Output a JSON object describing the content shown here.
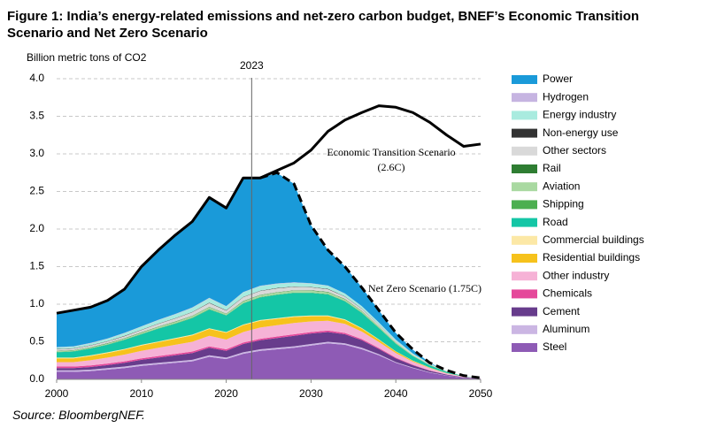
{
  "chart_data": {
    "type": "stacked-area",
    "title": "Figure 1: India’s energy-related emissions and net-zero carbon budget, BNEF’s Economic Transition Scenario and Net Zero Scenario",
    "y_label": "Billion metric tons of CO2",
    "source": "Source: BloombergNEF.",
    "x": [
      2000,
      2002,
      2004,
      2006,
      2008,
      2010,
      2012,
      2014,
      2016,
      2018,
      2020,
      2022,
      2024,
      2026,
      2028,
      2030,
      2032,
      2034,
      2036,
      2038,
      2040,
      2042,
      2044,
      2046,
      2048,
      2050
    ],
    "xlim": [
      2000,
      2050
    ],
    "xticks": [
      2000,
      2010,
      2020,
      2030,
      2040,
      2050
    ],
    "ylim": [
      0,
      4
    ],
    "yticks": [
      {
        "value": 0,
        "label": "0.0"
      },
      0.5,
      {
        "value": 1,
        "label": "1.0"
      },
      1.5,
      {
        "value": 2,
        "label": "2.0"
      },
      2.5,
      {
        "value": 3,
        "label": "3.0"
      },
      3.5,
      {
        "value": 4,
        "label": "4.0"
      }
    ],
    "grid": true,
    "marker": {
      "x": 2023,
      "label": "2023"
    },
    "series": [
      {
        "name": "Steel",
        "color": "#8e5bb5",
        "values": [
          0.1,
          0.1,
          0.11,
          0.13,
          0.15,
          0.18,
          0.2,
          0.22,
          0.24,
          0.3,
          0.27,
          0.34,
          0.38,
          0.4,
          0.42,
          0.45,
          0.48,
          0.46,
          0.4,
          0.32,
          0.22,
          0.15,
          0.09,
          0.05,
          0.02,
          0.01
        ]
      },
      {
        "name": "Aluminum",
        "color": "#cbb6e3",
        "values": [
          0.02,
          0.02,
          0.02,
          0.02,
          0.02,
          0.02,
          0.02,
          0.02,
          0.02,
          0.02,
          0.02,
          0.02,
          0.02,
          0.02,
          0.02,
          0.02,
          0.02,
          0.02,
          0.02,
          0.015,
          0.01,
          0.008,
          0.005,
          0.003,
          0.002,
          0.001
        ]
      },
      {
        "name": "Cement",
        "color": "#673c8c",
        "values": [
          0.03,
          0.03,
          0.035,
          0.04,
          0.05,
          0.06,
          0.07,
          0.08,
          0.09,
          0.1,
          0.09,
          0.11,
          0.12,
          0.13,
          0.14,
          0.14,
          0.13,
          0.12,
          0.1,
          0.07,
          0.05,
          0.03,
          0.02,
          0.01,
          0.005,
          0
        ]
      },
      {
        "name": "Chemicals",
        "color": "#e5489a",
        "values": [
          0.02,
          0.02,
          0.02,
          0.02,
          0.02,
          0.02,
          0.02,
          0.02,
          0.02,
          0.02,
          0.02,
          0.02,
          0.02,
          0.02,
          0.02,
          0.02,
          0.02,
          0.018,
          0.015,
          0.012,
          0.01,
          0.007,
          0.004,
          0.002,
          0.001,
          0
        ]
      },
      {
        "name": "Other industry",
        "color": "#f6b2d6",
        "values": [
          0.06,
          0.06,
          0.07,
          0.08,
          0.09,
          0.1,
          0.11,
          0.12,
          0.13,
          0.14,
          0.13,
          0.14,
          0.15,
          0.15,
          0.15,
          0.14,
          0.13,
          0.12,
          0.1,
          0.08,
          0.06,
          0.04,
          0.03,
          0.015,
          0.007,
          0.003
        ]
      },
      {
        "name": "Residential buildings",
        "color": "#f6c21c",
        "values": [
          0.05,
          0.05,
          0.055,
          0.06,
          0.065,
          0.07,
          0.075,
          0.08,
          0.085,
          0.09,
          0.09,
          0.09,
          0.09,
          0.085,
          0.08,
          0.07,
          0.06,
          0.05,
          0.04,
          0.03,
          0.02,
          0.012,
          0.006,
          0.003,
          0.001,
          0
        ]
      },
      {
        "name": "Commercial buildings",
        "color": "#fce8a6",
        "values": [
          0.01,
          0.01,
          0.01,
          0.01,
          0.01,
          0.01,
          0.01,
          0.01,
          0.01,
          0.01,
          0.01,
          0.01,
          0.01,
          0.01,
          0.01,
          0.01,
          0.01,
          0.01,
          0.008,
          0.006,
          0.004,
          0.003,
          0.002,
          0.001,
          0.001,
          0
        ]
      },
      {
        "name": "Road",
        "color": "#14c6a6",
        "values": [
          0.07,
          0.08,
          0.09,
          0.1,
          0.12,
          0.14,
          0.17,
          0.19,
          0.22,
          0.25,
          0.22,
          0.28,
          0.3,
          0.31,
          0.31,
          0.3,
          0.28,
          0.24,
          0.2,
          0.15,
          0.1,
          0.06,
          0.03,
          0.015,
          0.005,
          0
        ]
      },
      {
        "name": "Shipping",
        "color": "#4caf50",
        "values": [
          0.005,
          0.005,
          0.005,
          0.005,
          0.005,
          0.005,
          0.005,
          0.005,
          0.005,
          0.005,
          0.005,
          0.005,
          0.005,
          0.005,
          0.005,
          0.005,
          0.005,
          0.005,
          0.005,
          0.005,
          0.004,
          0.003,
          0.002,
          0.001,
          0.001,
          0
        ]
      },
      {
        "name": "Aviation",
        "color": "#a9d9a1",
        "values": [
          0.01,
          0.01,
          0.01,
          0.012,
          0.014,
          0.016,
          0.018,
          0.02,
          0.022,
          0.025,
          0.015,
          0.022,
          0.025,
          0.026,
          0.026,
          0.025,
          0.024,
          0.022,
          0.02,
          0.016,
          0.012,
          0.008,
          0.005,
          0.003,
          0.001,
          0
        ]
      },
      {
        "name": "Rail",
        "color": "#2e7d32",
        "values": [
          0.005,
          0.005,
          0.005,
          0.005,
          0.005,
          0.005,
          0.005,
          0.005,
          0.005,
          0.005,
          0.005,
          0.005,
          0.005,
          0.005,
          0.005,
          0.005,
          0.005,
          0.005,
          0.004,
          0.003,
          0.002,
          0.001,
          0.001,
          0.001,
          0,
          0
        ]
      },
      {
        "name": "Other sectors",
        "color": "#d9d9d9",
        "values": [
          0.02,
          0.02,
          0.02,
          0.022,
          0.025,
          0.03,
          0.035,
          0.04,
          0.045,
          0.05,
          0.04,
          0.05,
          0.05,
          0.05,
          0.045,
          0.04,
          0.035,
          0.03,
          0.025,
          0.02,
          0.015,
          0.01,
          0.006,
          0.003,
          0.001,
          0
        ]
      },
      {
        "name": "Non-energy use",
        "color": "#333333",
        "values": [
          0.005,
          0.005,
          0.005,
          0.005,
          0.005,
          0.005,
          0.005,
          0.005,
          0.005,
          0.005,
          0.005,
          0.005,
          0.005,
          0.005,
          0.005,
          0.005,
          0.005,
          0.005,
          0.004,
          0.003,
          0.002,
          0.001,
          0.001,
          0,
          0,
          0
        ]
      },
      {
        "name": "Energy industry",
        "color": "#a9ebdf",
        "values": [
          0.02,
          0.02,
          0.025,
          0.03,
          0.035,
          0.04,
          0.045,
          0.05,
          0.055,
          0.06,
          0.05,
          0.06,
          0.06,
          0.055,
          0.05,
          0.045,
          0.04,
          0.035,
          0.03,
          0.025,
          0.018,
          0.012,
          0.008,
          0.004,
          0.002,
          0.001
        ]
      },
      {
        "name": "Hydrogen",
        "color": "#c6b4e1",
        "values": [
          0.005,
          0.005,
          0.005,
          0.005,
          0.005,
          0.005,
          0.005,
          0.005,
          0.005,
          0.005,
          0.005,
          0.005,
          0.005,
          0.005,
          0.005,
          0.005,
          0.004,
          0.003,
          0.002,
          0.002,
          0.001,
          0.001,
          0,
          0,
          0,
          0
        ]
      },
      {
        "name": "Power",
        "color": "#1a9ad9",
        "values": [
          0.45,
          0.48,
          0.465,
          0.506,
          0.58,
          0.79,
          0.93,
          1.05,
          1.14,
          1.34,
          1.3,
          1.52,
          1.43,
          1.47,
          1.31,
          0.77,
          0.47,
          0.36,
          0.25,
          0.16,
          0.09,
          0.05,
          0.01,
          0,
          0,
          0
        ]
      }
    ],
    "lines": [
      {
        "name": "Economic Transition Scenario",
        "name_note": "(2.6C)",
        "color": "#000000",
        "dashed": false,
        "values": [
          0.88,
          0.92,
          0.96,
          1.05,
          1.2,
          1.5,
          1.72,
          1.92,
          2.1,
          2.42,
          2.28,
          2.68,
          2.68,
          2.78,
          2.88,
          3.05,
          3.3,
          3.45,
          3.55,
          3.64,
          3.62,
          3.55,
          3.42,
          3.25,
          3.1,
          3.13
        ]
      },
      {
        "name": "Net Zero Scenario (1.75C)",
        "color": "#000000",
        "dashed": true,
        "values": [
          null,
          null,
          null,
          null,
          null,
          null,
          null,
          null,
          null,
          null,
          null,
          null,
          2.68,
          2.75,
          2.6,
          2.05,
          1.72,
          1.5,
          1.22,
          0.92,
          0.62,
          0.4,
          0.22,
          0.12,
          0.05,
          0.02
        ]
      }
    ]
  }
}
